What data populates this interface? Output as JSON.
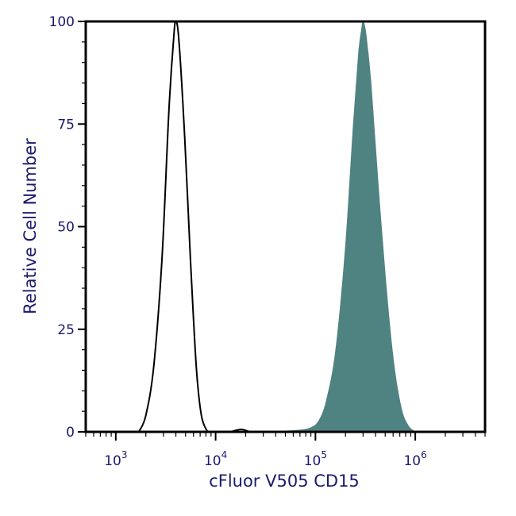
{
  "chart_data": {
    "type": "area",
    "xlabel": "cFluor V505 CD15",
    "ylabel": "Relative Cell Number",
    "x_scale": "log",
    "xlim": [
      500,
      5000000
    ],
    "ylim": [
      0,
      100
    ],
    "y_ticks": [
      {
        "value": 0,
        "label": "0"
      },
      {
        "value": 25,
        "label": "25"
      },
      {
        "value": 50,
        "label": "50"
      },
      {
        "value": 75,
        "label": "75"
      },
      {
        "value": 100,
        "label": "100"
      }
    ],
    "x_ticks": [
      {
        "value": 1000,
        "base": "10",
        "exp": "3"
      },
      {
        "value": 10000,
        "base": "10",
        "exp": "4"
      },
      {
        "value": 100000,
        "base": "10",
        "exp": "5"
      },
      {
        "value": 1000000,
        "base": "10",
        "exp": "6"
      }
    ],
    "grid": false,
    "series": [
      {
        "style": "outline",
        "color": "#000000",
        "points": [
          [
            1700,
            0
          ],
          [
            2000,
            4
          ],
          [
            2400,
            16
          ],
          [
            2900,
            42
          ],
          [
            3400,
            78
          ],
          [
            3800,
            96
          ],
          [
            4000,
            100
          ],
          [
            4300,
            95
          ],
          [
            4900,
            72
          ],
          [
            5600,
            42
          ],
          [
            6400,
            16
          ],
          [
            7200,
            4
          ],
          [
            8300,
            0
          ]
        ]
      },
      {
        "style": "outline",
        "color": "#000000",
        "points": [
          [
            14000,
            0
          ],
          [
            18000,
            0.6
          ],
          [
            22000,
            0
          ]
        ]
      },
      {
        "style": "filled",
        "color": "#4f8381",
        "points": [
          [
            30000,
            0
          ],
          [
            60000,
            0.3
          ],
          [
            90000,
            1
          ],
          [
            110000,
            3
          ],
          [
            130000,
            8
          ],
          [
            160000,
            20
          ],
          [
            200000,
            45
          ],
          [
            240000,
            75
          ],
          [
            270000,
            92
          ],
          [
            290000,
            98
          ],
          [
            300000,
            100
          ],
          [
            320000,
            97
          ],
          [
            360000,
            85
          ],
          [
            420000,
            62
          ],
          [
            500000,
            38
          ],
          [
            600000,
            18
          ],
          [
            720000,
            6
          ],
          [
            850000,
            1.5
          ],
          [
            1000000,
            0
          ]
        ]
      }
    ]
  }
}
